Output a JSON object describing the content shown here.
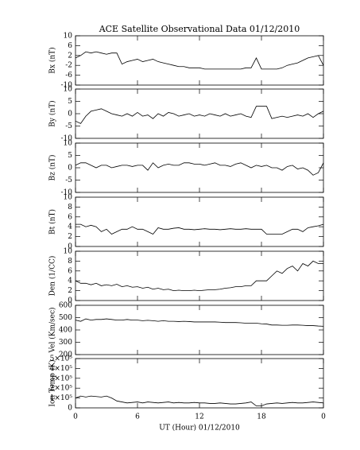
{
  "title": "ACE Satellite Observational Data   01/12/2010",
  "chart_data": [
    {
      "type": "line",
      "ylabel": "Bx (nT)",
      "ylim": [
        -10,
        10
      ],
      "yticks": [
        -10,
        -6,
        -2,
        2,
        6,
        10
      ],
      "x": [
        0,
        0.5,
        1,
        1.5,
        2,
        2.5,
        3,
        3.5,
        4,
        4.5,
        5,
        5.5,
        6,
        6.5,
        7,
        7.5,
        8,
        8.5,
        9,
        9.5,
        10,
        10.5,
        11,
        11.5,
        12,
        12.5,
        13,
        13.5,
        14,
        14.5,
        15,
        15.5,
        16,
        16.5,
        17,
        17.5,
        18,
        18.5,
        19,
        19.5,
        20,
        20.5,
        21,
        21.5,
        22,
        22.5,
        23,
        23.5,
        24
      ],
      "series": [
        {
          "color": "#000000",
          "values": [
            1,
            2,
            3.5,
            3,
            3.5,
            3,
            2.5,
            3,
            3,
            -1.5,
            -0.5,
            0,
            0.5,
            -0.5,
            0,
            0.5,
            -0.5,
            -1,
            -1.5,
            -2,
            -2.5,
            -2.5,
            -3,
            -3,
            -3,
            -3.5,
            -3.5,
            -3.5,
            -3.5,
            -3.5,
            -3.5,
            -3.5,
            -3.5,
            -3,
            -3,
            1,
            -3.5,
            -3.5,
            -3.5,
            -3.5,
            -3,
            -2,
            -1.5,
            -1,
            0,
            1,
            1.5,
            2,
            -2
          ]
        }
      ]
    },
    {
      "type": "line",
      "ylabel": "By (nT)",
      "ylim": [
        -10,
        10
      ],
      "yticks": [
        -10,
        -5,
        0,
        5,
        10
      ],
      "x": [
        0,
        0.5,
        1,
        1.5,
        2,
        2.5,
        3,
        3.5,
        4,
        4.5,
        5,
        5.5,
        6,
        6.5,
        7,
        7.5,
        8,
        8.5,
        9,
        9.5,
        10,
        10.5,
        11,
        11.5,
        12,
        12.5,
        13,
        13.5,
        14,
        14.5,
        15,
        15.5,
        16,
        16.5,
        17,
        17.5,
        18,
        18.5,
        19,
        19.5,
        20,
        20.5,
        21,
        21.5,
        22,
        22.5,
        23,
        23.5,
        24
      ],
      "series": [
        {
          "color": "#000000",
          "values": [
            -3,
            -4,
            -1,
            1,
            1.5,
            2,
            1,
            0,
            -0.5,
            -1,
            0,
            -1,
            0.5,
            -1,
            -0.5,
            -2,
            0,
            -1,
            0.5,
            0,
            -1,
            -0.5,
            0,
            -1,
            -0.5,
            -1,
            0,
            -0.5,
            -1,
            0,
            -1,
            -0.5,
            0,
            -1,
            -1.5,
            3,
            3,
            3,
            -2,
            -1.5,
            -1,
            -1.5,
            -1,
            -0.5,
            -1,
            0,
            -1.5,
            0,
            1
          ]
        }
      ]
    },
    {
      "type": "line",
      "ylabel": "Bz (nT)",
      "ylim": [
        -10,
        10
      ],
      "yticks": [
        -10,
        -5,
        0,
        5,
        10
      ],
      "x": [
        0,
        0.5,
        1,
        1.5,
        2,
        2.5,
        3,
        3.5,
        4,
        4.5,
        5,
        5.5,
        6,
        6.5,
        7,
        7.5,
        8,
        8.5,
        9,
        9.5,
        10,
        10.5,
        11,
        11.5,
        12,
        12.5,
        13,
        13.5,
        14,
        14.5,
        15,
        15.5,
        16,
        16.5,
        17,
        17.5,
        18,
        18.5,
        19,
        19.5,
        20,
        20.5,
        21,
        21.5,
        22,
        22.5,
        23,
        23.5,
        24
      ],
      "series": [
        {
          "color": "#000000",
          "values": [
            1,
            2,
            2,
            1,
            0,
            1,
            1,
            0,
            0.5,
            1,
            1,
            0.5,
            1,
            1,
            -1,
            2,
            0,
            1,
            1.5,
            1,
            1,
            2,
            2,
            1.5,
            1.5,
            1,
            1.5,
            2,
            1,
            1,
            0.5,
            1.5,
            2,
            1,
            0,
            1,
            0.5,
            1,
            0,
            0,
            -1,
            0.5,
            1,
            -0.5,
            0,
            -1,
            -3,
            -2,
            2
          ]
        }
      ]
    },
    {
      "type": "line",
      "ylabel": "Bt (nT)",
      "ylim": [
        0,
        10
      ],
      "yticks": [
        0,
        2,
        4,
        6,
        8,
        10
      ],
      "x": [
        0,
        0.5,
        1,
        1.5,
        2,
        2.5,
        3,
        3.5,
        4,
        4.5,
        5,
        5.5,
        6,
        6.5,
        7,
        7.5,
        8,
        8.5,
        9,
        9.5,
        10,
        10.5,
        11,
        11.5,
        12,
        12.5,
        13,
        13.5,
        14,
        14.5,
        15,
        15.5,
        16,
        16.5,
        17,
        17.5,
        18,
        18.5,
        19,
        19.5,
        20,
        20.5,
        21,
        21.5,
        22,
        22.5,
        23,
        23.5,
        24
      ],
      "series": [
        {
          "color": "#000000",
          "values": [
            4.5,
            4.5,
            4,
            4.3,
            4,
            3,
            3.5,
            2.5,
            3,
            3.5,
            3.5,
            4,
            3.5,
            3.5,
            3,
            2.5,
            3.8,
            3.5,
            3.5,
            3.7,
            3.8,
            3.5,
            3.5,
            3.4,
            3.5,
            3.6,
            3.5,
            3.5,
            3.4,
            3.5,
            3.6,
            3.5,
            3.5,
            3.6,
            3.5,
            3.5,
            3.5,
            2.5,
            2.5,
            2.5,
            2.5,
            3,
            3.5,
            3.5,
            3,
            3.8,
            4,
            4.2,
            4.5
          ]
        }
      ]
    },
    {
      "type": "line",
      "ylabel": "Den (1/CC)",
      "ylim": [
        0,
        10
      ],
      "yticks": [
        0,
        2,
        4,
        6,
        8,
        10
      ],
      "x": [
        0,
        0.5,
        1,
        1.5,
        2,
        2.5,
        3,
        3.5,
        4,
        4.5,
        5,
        5.5,
        6,
        6.5,
        7,
        7.5,
        8,
        8.5,
        9,
        9.5,
        10,
        10.5,
        11,
        11.5,
        12,
        12.5,
        13,
        13.5,
        14,
        14.5,
        15,
        15.5,
        16,
        16.5,
        17,
        17.5,
        18,
        18.5,
        19,
        19.5,
        20,
        20.5,
        21,
        21.5,
        22,
        22.5,
        23,
        23.5,
        24
      ],
      "series": [
        {
          "color": "#000000",
          "values": [
            4,
            3.5,
            3.5,
            3.2,
            3.5,
            3,
            3.2,
            3,
            3.3,
            2.8,
            3,
            2.7,
            2.8,
            2.5,
            2.7,
            2.3,
            2.5,
            2.2,
            2.3,
            2,
            2.1,
            2,
            2,
            2.1,
            2,
            2.1,
            2.2,
            2.2,
            2.3,
            2.5,
            2.6,
            2.8,
            2.8,
            3,
            3,
            4,
            4,
            4,
            5,
            6,
            5.5,
            6.5,
            7,
            6,
            7.5,
            7,
            8,
            7.5,
            7.5
          ]
        }
      ]
    },
    {
      "type": "line",
      "ylabel": "Vel (Km/sec)",
      "ylim": [
        200,
        600
      ],
      "yticks": [
        200,
        300,
        400,
        500,
        600
      ],
      "x": [
        0,
        0.5,
        1,
        1.5,
        2,
        2.5,
        3,
        3.5,
        4,
        4.5,
        5,
        5.5,
        6,
        6.5,
        7,
        7.5,
        8,
        8.5,
        9,
        9.5,
        10,
        10.5,
        11,
        11.5,
        12,
        12.5,
        13,
        13.5,
        14,
        14.5,
        15,
        15.5,
        16,
        16.5,
        17,
        17.5,
        18,
        18.5,
        19,
        19.5,
        20,
        20.5,
        21,
        21.5,
        22,
        22.5,
        23,
        23.5,
        24
      ],
      "series": [
        {
          "color": "#000000",
          "values": [
            480,
            470,
            490,
            480,
            485,
            485,
            490,
            485,
            480,
            480,
            485,
            480,
            480,
            475,
            478,
            475,
            470,
            475,
            470,
            470,
            468,
            470,
            468,
            465,
            465,
            465,
            465,
            465,
            463,
            460,
            460,
            460,
            458,
            455,
            455,
            455,
            450,
            448,
            440,
            440,
            438,
            438,
            440,
            440,
            438,
            435,
            435,
            432,
            430
          ]
        }
      ]
    },
    {
      "type": "line",
      "ylabel": "Ion Temp (K)",
      "ylim": [
        0,
        500000
      ],
      "yticks": [
        0,
        {
          "value": 100000,
          "label": "1×10⁵"
        },
        {
          "value": 200000,
          "label": "2×10⁵"
        },
        {
          "value": 300000,
          "label": "3×10⁵"
        },
        {
          "value": 400000,
          "label": "4×10⁵"
        },
        {
          "value": 500000,
          "label": "5×10⁵"
        }
      ],
      "x": [
        0,
        0.5,
        1,
        1.5,
        2,
        2.5,
        3,
        3.5,
        4,
        4.5,
        5,
        5.5,
        6,
        6.5,
        7,
        7.5,
        8,
        8.5,
        9,
        9.5,
        10,
        10.5,
        11,
        11.5,
        12,
        12.5,
        13,
        13.5,
        14,
        14.5,
        15,
        15.5,
        16,
        16.5,
        17,
        17.5,
        18,
        18.5,
        19,
        19.5,
        20,
        20.5,
        21,
        21.5,
        22,
        22.5,
        23,
        23.5,
        24
      ],
      "series": [
        {
          "color": "#000000",
          "values": [
            100000,
            120000,
            110000,
            120000,
            115000,
            110000,
            120000,
            100000,
            70000,
            60000,
            50000,
            55000,
            60000,
            50000,
            60000,
            55000,
            50000,
            55000,
            60000,
            50000,
            55000,
            50000,
            50000,
            55000,
            50000,
            50000,
            45000,
            45000,
            50000,
            45000,
            40000,
            40000,
            45000,
            50000,
            60000,
            20000,
            20000,
            40000,
            45000,
            50000,
            45000,
            50000,
            55000,
            50000,
            50000,
            55000,
            60000,
            55000,
            50000
          ]
        }
      ],
      "xlim": [
        0,
        24
      ],
      "xticks": [
        0,
        6,
        12,
        18,
        {
          "value": 24,
          "label": "0"
        }
      ],
      "xlabel": "UT (Hour)  01/12/2010"
    }
  ]
}
